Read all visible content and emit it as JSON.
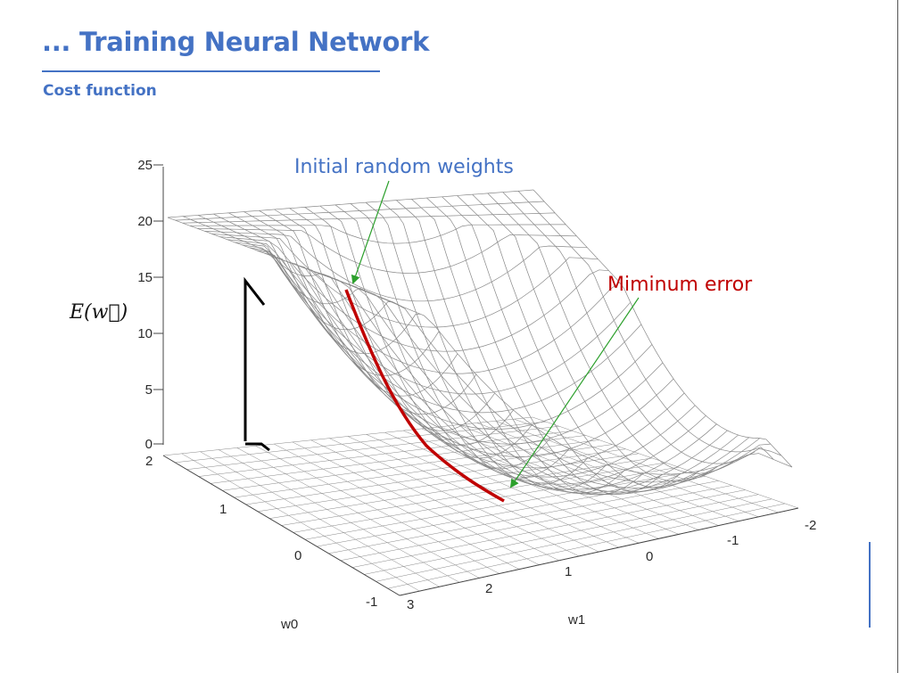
{
  "slide": {
    "title": "... Training Neural Network",
    "subtitle": "Cost function"
  },
  "colors": {
    "accent": "#4472c4",
    "descent_path": "#c00000",
    "pointer": "#2ca02c",
    "mesh": "#888888"
  },
  "diagram": {
    "z_axis_label": "E(w⃗)",
    "z_ticks": [
      "0",
      "5",
      "10",
      "15",
      "20",
      "25"
    ],
    "w0_ticks": [
      "2",
      "1",
      "0",
      "-1"
    ],
    "w1_ticks": [
      "3",
      "2",
      "1",
      "0",
      "-1",
      "-2"
    ],
    "x_axis_label": "w0",
    "y_axis_label": "w1",
    "annotations": {
      "initial": "Initial random weights",
      "minimum": "Miminum error"
    }
  }
}
